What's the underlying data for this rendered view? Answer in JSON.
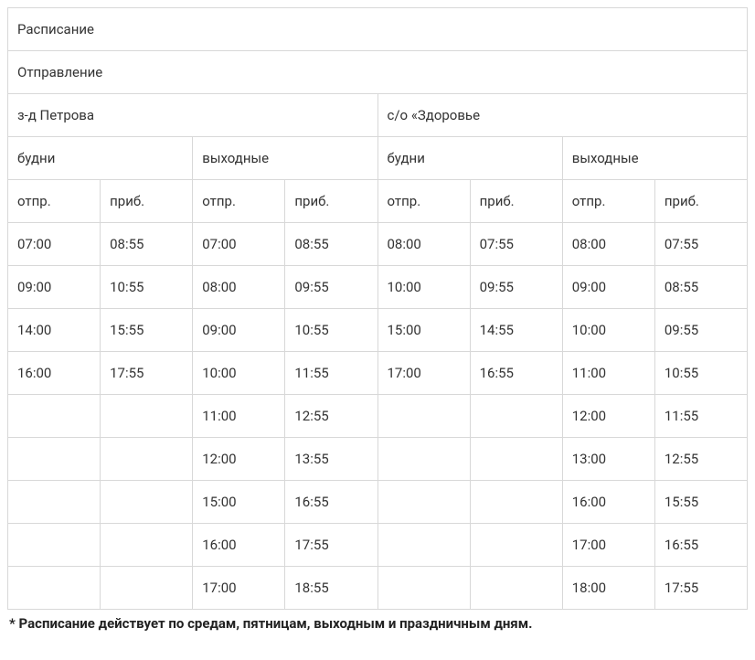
{
  "table": {
    "type": "table",
    "border_color": "#d8d8d8",
    "background_color": "#ffffff",
    "text_color": "#333333",
    "font_size": 15,
    "header_rows": {
      "row1": {
        "title": "Расписание"
      },
      "row2": {
        "departure": "Отправление"
      },
      "row3": {
        "station1": "з-д Петрова",
        "station2": "с/о «Здоровье"
      },
      "row4": {
        "weekdays": "будни",
        "weekends": "выходные"
      },
      "row5": {
        "dep": "отпр.",
        "arr": "приб."
      }
    },
    "columns": [
      "st1_wd_dep",
      "st1_wd_arr",
      "st1_we_dep",
      "st1_we_arr",
      "st2_wd_dep",
      "st2_wd_arr",
      "st2_we_dep",
      "st2_we_arr"
    ],
    "rows": [
      [
        "07:00",
        "08:55",
        "07:00",
        "08:55",
        "08:00",
        "07:55",
        "08:00",
        "07:55"
      ],
      [
        "09:00",
        "10:55",
        "08:00",
        "09:55",
        "10:00",
        "09:55",
        "09:00",
        "08:55"
      ],
      [
        "14:00",
        "15:55",
        "09:00",
        "10:55",
        "15:00",
        "14:55",
        "10:00",
        "09:55"
      ],
      [
        "16:00",
        "17:55",
        "10:00",
        "11:55",
        "17:00",
        "16:55",
        "11:00",
        "10:55"
      ],
      [
        "",
        "",
        "11:00",
        "12:55",
        "",
        "",
        "12:00",
        "11:55"
      ],
      [
        "",
        "",
        "12:00",
        "13:55",
        "",
        "",
        "13:00",
        "12:55"
      ],
      [
        "",
        "",
        "15:00",
        "16:55",
        "",
        "",
        "16:00",
        "15:55"
      ],
      [
        "",
        "",
        "16:00",
        "17:55",
        "",
        "",
        "17:00",
        "16:55"
      ],
      [
        "",
        "",
        "17:00",
        "18:55",
        "",
        "",
        "18:00",
        "17:55"
      ]
    ]
  },
  "footnote": "* Расписание действует по средам, пятницам, выходным и праздничным дням."
}
